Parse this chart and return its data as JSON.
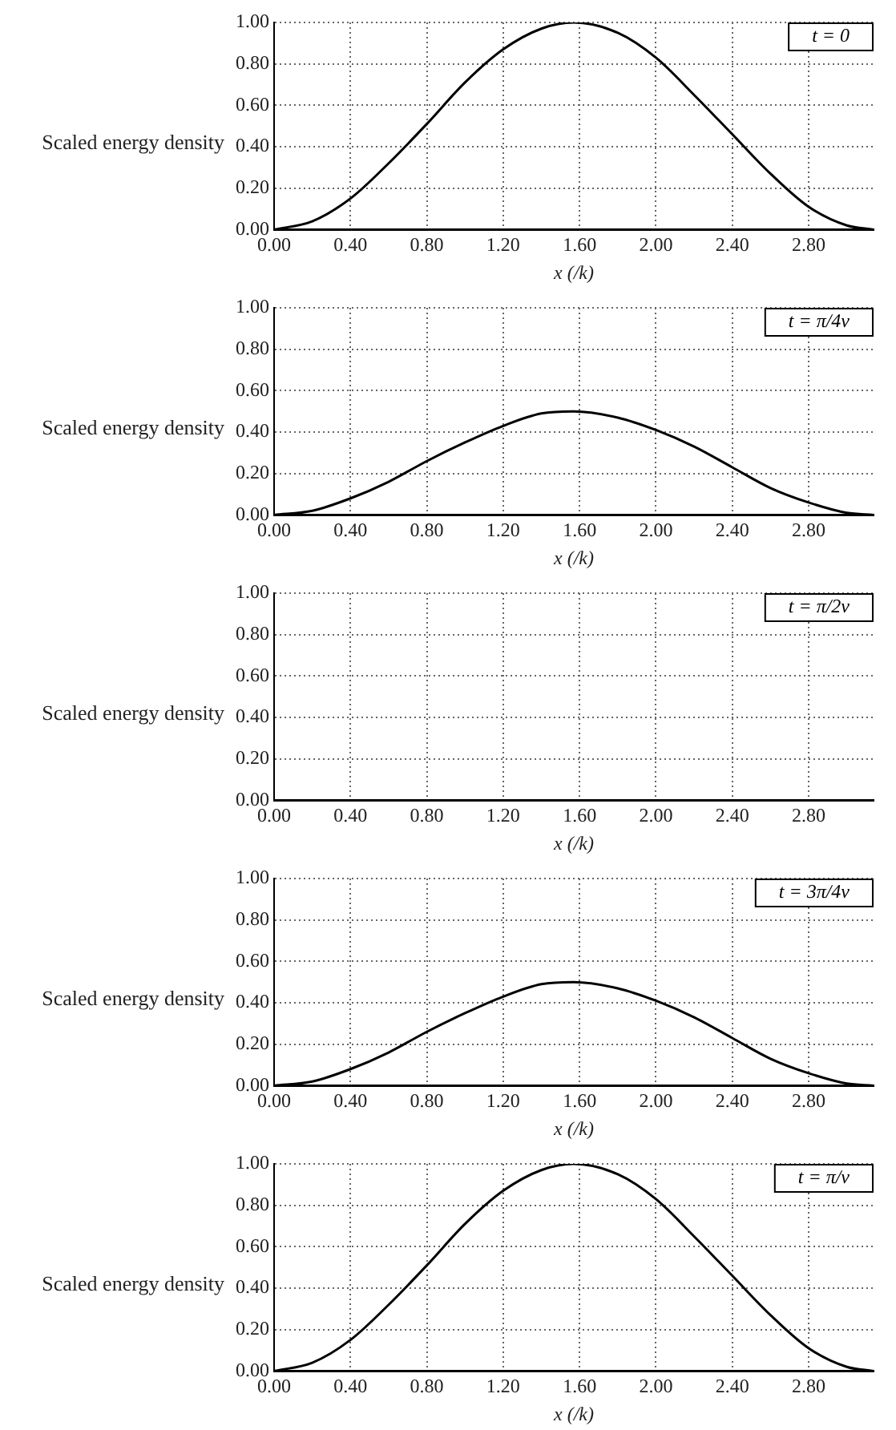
{
  "chart_data": [
    {
      "type": "line",
      "xlabel": "x (/k)",
      "ylabel": "Scaled energy density",
      "x": [
        0,
        0.2,
        0.4,
        0.6,
        0.8,
        1.0,
        1.2,
        1.4,
        1.57,
        1.8,
        2.0,
        2.2,
        2.4,
        2.6,
        2.8,
        3.0,
        3.14
      ],
      "series": [
        {
          "name": "t = 0",
          "color": "#000000",
          "values": [
            0,
            0.04,
            0.15,
            0.32,
            0.51,
            0.71,
            0.87,
            0.97,
            1.0,
            0.95,
            0.83,
            0.65,
            0.46,
            0.27,
            0.11,
            0.02,
            0
          ]
        }
      ],
      "xlim": [
        0,
        3.14
      ],
      "ylim": [
        0,
        1
      ],
      "xticks": [
        {
          "value": 0,
          "label": "0.00"
        },
        {
          "value": 0.4,
          "label": "0.40"
        },
        {
          "value": 0.8,
          "label": "0.80"
        },
        {
          "value": 1.2,
          "label": "1.20"
        },
        {
          "value": 1.6,
          "label": "1.60"
        },
        {
          "value": 2,
          "label": "2.00"
        },
        {
          "value": 2.4,
          "label": "2.40"
        },
        {
          "value": 2.8,
          "label": "2.80"
        }
      ],
      "yticks": [
        {
          "value": 0,
          "label": "0.00"
        },
        {
          "value": 0.2,
          "label": "0.20"
        },
        {
          "value": 0.4,
          "label": "0.40"
        },
        {
          "value": 0.6,
          "label": "0.60"
        },
        {
          "value": 0.8,
          "label": "0.80"
        },
        {
          "value": 1,
          "label": "1.00"
        }
      ],
      "grid": true,
      "legend": "top right",
      "marker": "none",
      "line_style": "solid"
    },
    {
      "type": "line",
      "xlabel": "x (/k)",
      "ylabel": "Scaled energy density",
      "x": [
        0,
        0.2,
        0.4,
        0.6,
        0.8,
        1.0,
        1.2,
        1.4,
        1.57,
        1.8,
        2.0,
        2.2,
        2.4,
        2.6,
        2.8,
        3.0,
        3.14
      ],
      "series": [
        {
          "name": "t = π/4v",
          "color": "#000000",
          "values": [
            0,
            0.02,
            0.08,
            0.16,
            0.26,
            0.35,
            0.43,
            0.49,
            0.5,
            0.47,
            0.41,
            0.33,
            0.23,
            0.13,
            0.06,
            0.01,
            0
          ]
        }
      ],
      "xlim": [
        0,
        3.14
      ],
      "ylim": [
        0,
        1
      ],
      "xticks": [
        {
          "value": 0,
          "label": "0.00"
        },
        {
          "value": 0.4,
          "label": "0.40"
        },
        {
          "value": 0.8,
          "label": "0.80"
        },
        {
          "value": 1.2,
          "label": "1.20"
        },
        {
          "value": 1.6,
          "label": "1.60"
        },
        {
          "value": 2,
          "label": "2.00"
        },
        {
          "value": 2.4,
          "label": "2.40"
        },
        {
          "value": 2.8,
          "label": "2.80"
        }
      ],
      "yticks": [
        {
          "value": 0,
          "label": "0.00"
        },
        {
          "value": 0.2,
          "label": "0.20"
        },
        {
          "value": 0.4,
          "label": "0.40"
        },
        {
          "value": 0.6,
          "label": "0.60"
        },
        {
          "value": 0.8,
          "label": "0.80"
        },
        {
          "value": 1,
          "label": "1.00"
        }
      ],
      "grid": true,
      "legend": "top right",
      "marker": "none",
      "line_style": "solid"
    },
    {
      "type": "line",
      "xlabel": "x (/k)",
      "ylabel": "Scaled energy density",
      "x": [
        0,
        0.2,
        0.4,
        0.6,
        0.8,
        1.0,
        1.2,
        1.4,
        1.57,
        1.8,
        2.0,
        2.2,
        2.4,
        2.6,
        2.8,
        3.0,
        3.14
      ],
      "series": [
        {
          "name": "t = π/2v",
          "color": "#000000",
          "values": [
            0,
            0,
            0,
            0,
            0,
            0,
            0,
            0,
            0,
            0,
            0,
            0,
            0,
            0,
            0,
            0,
            0
          ]
        }
      ],
      "xlim": [
        0,
        3.14
      ],
      "ylim": [
        0,
        1
      ],
      "xticks": [
        {
          "value": 0,
          "label": "0.00"
        },
        {
          "value": 0.4,
          "label": "0.40"
        },
        {
          "value": 0.8,
          "label": "0.80"
        },
        {
          "value": 1.2,
          "label": "1.20"
        },
        {
          "value": 1.6,
          "label": "1.60"
        },
        {
          "value": 2,
          "label": "2.00"
        },
        {
          "value": 2.4,
          "label": "2.40"
        },
        {
          "value": 2.8,
          "label": "2.80"
        }
      ],
      "yticks": [
        {
          "value": 0,
          "label": "0.00"
        },
        {
          "value": 0.2,
          "label": "0.20"
        },
        {
          "value": 0.4,
          "label": "0.40"
        },
        {
          "value": 0.6,
          "label": "0.60"
        },
        {
          "value": 0.8,
          "label": "0.80"
        },
        {
          "value": 1,
          "label": "1.00"
        }
      ],
      "grid": true,
      "legend": "top right",
      "marker": "none",
      "line_style": "solid"
    },
    {
      "type": "line",
      "xlabel": "x (/k)",
      "ylabel": "Scaled energy density",
      "x": [
        0,
        0.2,
        0.4,
        0.6,
        0.8,
        1.0,
        1.2,
        1.4,
        1.57,
        1.8,
        2.0,
        2.2,
        2.4,
        2.6,
        2.8,
        3.0,
        3.14
      ],
      "series": [
        {
          "name": "t = 3π/4v",
          "color": "#000000",
          "values": [
            0,
            0.02,
            0.08,
            0.16,
            0.26,
            0.35,
            0.43,
            0.49,
            0.5,
            0.47,
            0.41,
            0.33,
            0.23,
            0.13,
            0.06,
            0.01,
            0
          ]
        }
      ],
      "xlim": [
        0,
        3.14
      ],
      "ylim": [
        0,
        1
      ],
      "xticks": [
        {
          "value": 0,
          "label": "0.00"
        },
        {
          "value": 0.4,
          "label": "0.40"
        },
        {
          "value": 0.8,
          "label": "0.80"
        },
        {
          "value": 1.2,
          "label": "1.20"
        },
        {
          "value": 1.6,
          "label": "1.60"
        },
        {
          "value": 2,
          "label": "2.00"
        },
        {
          "value": 2.4,
          "label": "2.40"
        },
        {
          "value": 2.8,
          "label": "2.80"
        }
      ],
      "yticks": [
        {
          "value": 0,
          "label": "0.00"
        },
        {
          "value": 0.2,
          "label": "0.20"
        },
        {
          "value": 0.4,
          "label": "0.40"
        },
        {
          "value": 0.6,
          "label": "0.60"
        },
        {
          "value": 0.8,
          "label": "0.80"
        },
        {
          "value": 1,
          "label": "1.00"
        }
      ],
      "grid": true,
      "legend": "top right",
      "marker": "none",
      "line_style": "solid"
    },
    {
      "type": "line",
      "xlabel": "x (/k)",
      "ylabel": "Scaled energy density",
      "x": [
        0,
        0.2,
        0.4,
        0.6,
        0.8,
        1.0,
        1.2,
        1.4,
        1.57,
        1.8,
        2.0,
        2.2,
        2.4,
        2.6,
        2.8,
        3.0,
        3.14
      ],
      "series": [
        {
          "name": "t = π/v",
          "color": "#000000",
          "values": [
            0,
            0.04,
            0.15,
            0.32,
            0.51,
            0.71,
            0.87,
            0.97,
            1.0,
            0.95,
            0.83,
            0.65,
            0.46,
            0.27,
            0.11,
            0.02,
            0
          ]
        }
      ],
      "xlim": [
        0,
        3.14
      ],
      "ylim": [
        0,
        1
      ],
      "xticks": [
        {
          "value": 0,
          "label": "0.00"
        },
        {
          "value": 0.4,
          "label": "0.40"
        },
        {
          "value": 0.8,
          "label": "0.80"
        },
        {
          "value": 1.2,
          "label": "1.20"
        },
        {
          "value": 1.6,
          "label": "1.60"
        },
        {
          "value": 2,
          "label": "2.00"
        },
        {
          "value": 2.4,
          "label": "2.40"
        },
        {
          "value": 2.8,
          "label": "2.80"
        }
      ],
      "yticks": [
        {
          "value": 0,
          "label": "0.00"
        },
        {
          "value": 0.2,
          "label": "0.20"
        },
        {
          "value": 0.4,
          "label": "0.40"
        },
        {
          "value": 0.6,
          "label": "0.60"
        },
        {
          "value": 0.8,
          "label": "0.80"
        },
        {
          "value": 1,
          "label": "1.00"
        }
      ],
      "grid": true,
      "legend": "top right",
      "marker": "none",
      "line_style": "solid"
    }
  ]
}
